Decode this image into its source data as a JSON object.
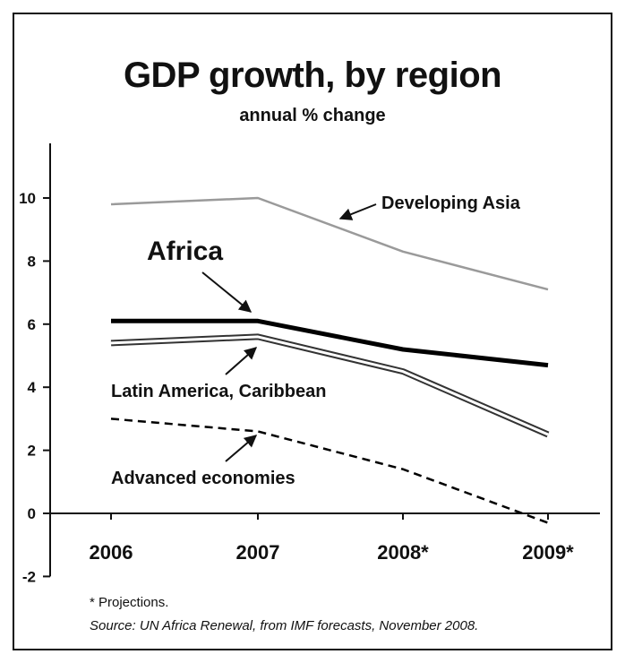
{
  "chart_data": {
    "type": "line",
    "title": "GDP growth, by region",
    "subtitle": "annual % change",
    "categories": [
      "2006",
      "2007",
      "2008*",
      "2009*"
    ],
    "ylim": [
      -2,
      11
    ],
    "yticks": [
      "-2",
      "0",
      "2",
      "4",
      "6",
      "8",
      "10"
    ],
    "grid": false,
    "series": [
      {
        "name": "Developing Asia",
        "values": [
          9.8,
          10.0,
          8.3,
          7.1
        ],
        "color": "#9a9a9a",
        "style": "solid-gray"
      },
      {
        "name": "Africa",
        "values": [
          6.1,
          6.1,
          5.2,
          4.7
        ],
        "color": "#000000",
        "style": "solid-thick"
      },
      {
        "name": "Latin America, Caribbean",
        "values": [
          5.4,
          5.6,
          4.5,
          2.5
        ],
        "color": "#555555",
        "style": "double"
      },
      {
        "name": "Advanced economies",
        "values": [
          3.0,
          2.6,
          1.4,
          -0.3
        ],
        "color": "#000000",
        "style": "dashed"
      }
    ],
    "footnote": "* Projections.",
    "source": "Source: UN Africa Renewal, from IMF forecasts, November 2008."
  }
}
